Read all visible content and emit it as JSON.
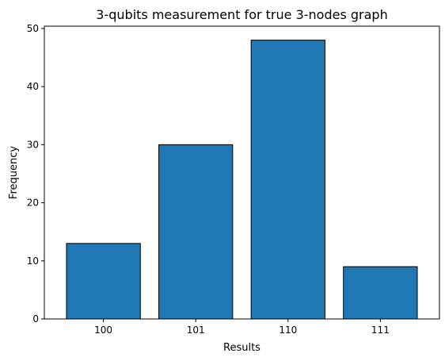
{
  "chart_data": {
    "type": "bar",
    "title": "3-qubits measurement for true 3-nodes graph",
    "xlabel": "Results",
    "ylabel": "Frequency",
    "categories": [
      "100",
      "101",
      "110",
      "111"
    ],
    "values": [
      13,
      30,
      48,
      9
    ],
    "ylim": [
      0,
      50.4
    ],
    "yticks": [
      0,
      10,
      20,
      30,
      40,
      50
    ],
    "grid": false,
    "legend": "none",
    "bar_color": "#1f77b4",
    "bar_edge_color": "#000000"
  }
}
